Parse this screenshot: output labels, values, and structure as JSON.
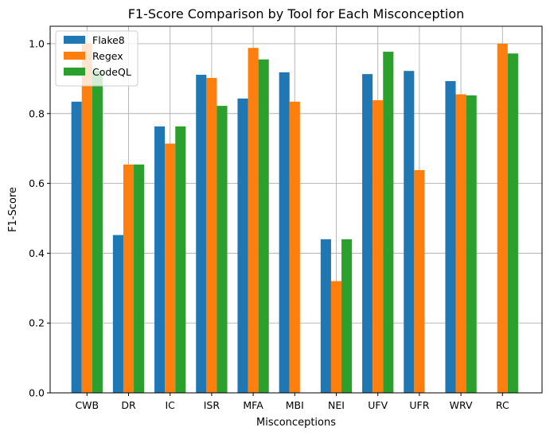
{
  "chart_data": {
    "type": "bar",
    "title": "F1-Score Comparison by Tool for Each Misconception",
    "xlabel": "Misconceptions",
    "ylabel": "F1-Score",
    "categories": [
      "CWB",
      "DR",
      "IC",
      "ISR",
      "MFA",
      "MBI",
      "NEI",
      "UFV",
      "UFR",
      "WRV",
      "RC"
    ],
    "series": [
      {
        "name": "Flake8",
        "color": "#1f77b4",
        "values": [
          0.834,
          0.452,
          0.763,
          0.911,
          0.843,
          0.918,
          0.44,
          0.913,
          0.922,
          0.893,
          0
        ]
      },
      {
        "name": "Regex",
        "color": "#ff7f0e",
        "values": [
          1.0,
          0.654,
          0.714,
          0.902,
          0.988,
          0.834,
          0.32,
          0.838,
          0.638,
          0.855,
          1.0
        ]
      },
      {
        "name": "CodeQL",
        "color": "#2ca02c",
        "values": [
          0.923,
          0.654,
          0.763,
          0.822,
          0.955,
          0,
          0.44,
          0.977,
          0,
          0.852,
          0.972
        ]
      }
    ],
    "ylim": [
      0,
      1.05
    ],
    "yticks": [
      0.0,
      0.2,
      0.4,
      0.6,
      0.8,
      1.0
    ],
    "ytick_labels": [
      "0.0",
      "0.2",
      "0.4",
      "0.6",
      "0.8",
      "1.0"
    ],
    "grid": true,
    "legend_position": "upper-left"
  }
}
